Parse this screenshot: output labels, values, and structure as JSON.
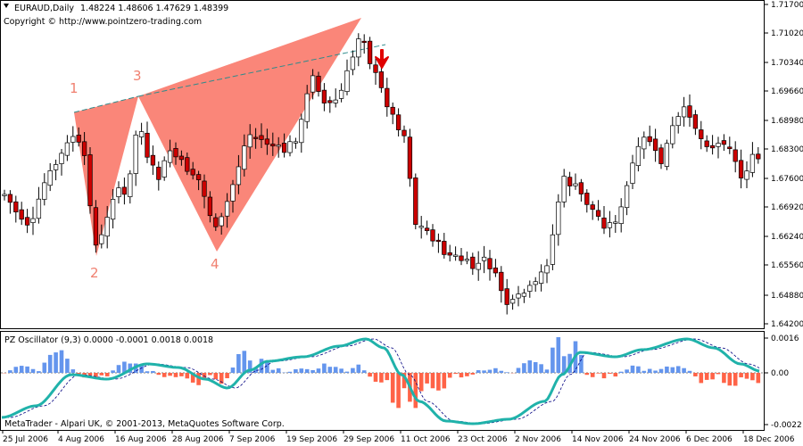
{
  "main_panel": {
    "title": "EURAUD,Daily",
    "ohlc": "1.48224 1.48606 1.47629 1.48399",
    "copyright": "Copyright © http://www.pointzero-trading.com",
    "y_ticks": [
      "1.71700",
      "1.71020",
      "1.70340",
      "1.69660",
      "1.68980",
      "1.68300",
      "1.67600",
      "1.66920",
      "1.66240",
      "1.65560",
      "1.64880",
      "1.64200"
    ],
    "pattern_labels": [
      "1",
      "2",
      "3",
      "4"
    ],
    "colors": {
      "bull": "#ffffff",
      "bear": "#cc0000",
      "wick": "#000000",
      "pattern_fill": "#fa8072",
      "label": "#f08070",
      "signal_arrow": "#e00000"
    }
  },
  "oscillator_panel": {
    "title": "PZ Oscillator (9,3) 0.0000 -0.0001 0.0018 0.0018",
    "y_ticks": [
      "0.0016",
      "0.00",
      "-0.0022"
    ],
    "colors": {
      "pos": "#6495ed",
      "neg": "#ff6347",
      "main_line": "#20b2aa",
      "signal_line": "#000080"
    }
  },
  "x_ticks": [
    "25 Jul 2006",
    "4 Aug 2006",
    "16 Aug 2006",
    "28 Aug 2006",
    "7 Sep 2006",
    "19 Sep 2006",
    "29 Sep 2006",
    "11 Oct 2006",
    "23 Oct 2006",
    "2 Nov 2006",
    "14 Nov 2006",
    "24 Nov 2006",
    "6 Dec 2006",
    "18 Dec 2006"
  ],
  "footer": "MetaTrader - Alpari UK, © 2001-2013, MetaQuotes Software Corp."
}
